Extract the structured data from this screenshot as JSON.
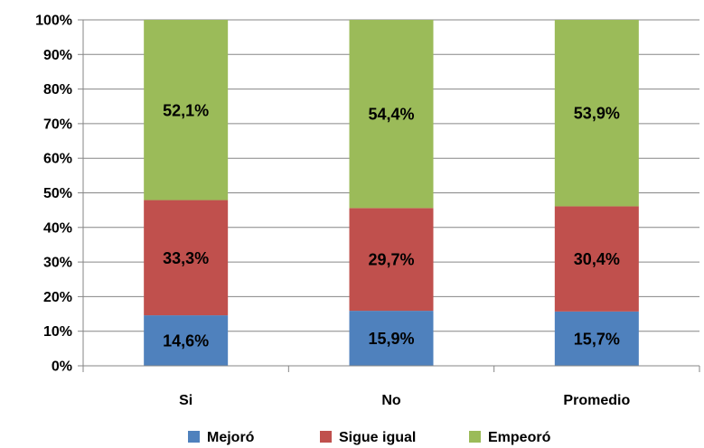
{
  "chart_data": {
    "type": "bar",
    "stacked": true,
    "percent_stacked": true,
    "categories": [
      "Si",
      "No",
      "Promedio"
    ],
    "series": [
      {
        "name": "Mejoró",
        "values": [
          14.6,
          15.9,
          15.7
        ],
        "labels": [
          "14,6%",
          "15,9%",
          "15,7%"
        ],
        "color": "#4F81BD"
      },
      {
        "name": "Sigue igual",
        "values": [
          33.3,
          29.7,
          30.4
        ],
        "labels": [
          "33,3%",
          "29,7%",
          "30,4%"
        ],
        "color": "#C0504D"
      },
      {
        "name": "Empeoró",
        "values": [
          52.1,
          54.4,
          53.9
        ],
        "labels": [
          "52,1%",
          "54,4%",
          "53,9%"
        ],
        "color": "#9BBB59"
      }
    ],
    "ylim": [
      0,
      100
    ],
    "yticks": [
      "0%",
      "10%",
      "20%",
      "30%",
      "40%",
      "50%",
      "60%",
      "70%",
      "80%",
      "90%",
      "100%"
    ],
    "grid": true,
    "legend_position": "bottom",
    "title": "",
    "xlabel": "",
    "ylabel": ""
  }
}
